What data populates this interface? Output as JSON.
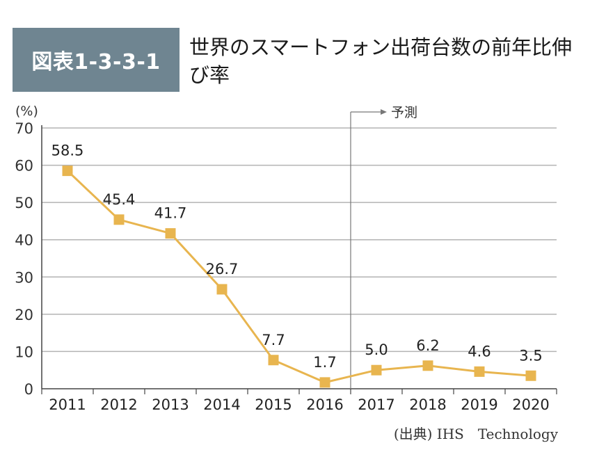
{
  "figure": {
    "badge": "図表1-3-3-1",
    "title": "世界のスマートフォン出荷台数の前年比伸び率",
    "source": "(出典) IHS　Technology"
  },
  "chart_data": {
    "type": "line",
    "categories": [
      "2011",
      "2012",
      "2013",
      "2014",
      "2015",
      "2016",
      "2017",
      "2018",
      "2019",
      "2020"
    ],
    "series": [
      {
        "values": [
          58.5,
          45.4,
          41.7,
          26.7,
          7.7,
          1.7,
          5.0,
          6.2,
          4.6,
          3.5
        ],
        "labels": [
          "58.5",
          "45.4",
          "41.7",
          "26.7",
          "7.7",
          "1.7",
          "5.0",
          "6.2",
          "4.6",
          "3.5"
        ],
        "color": "#e8b54f"
      }
    ],
    "ylabel": "(%)",
    "ylim": [
      0,
      70
    ],
    "yticks": [
      0,
      10,
      20,
      30,
      40,
      50,
      60,
      70
    ],
    "grid": true,
    "forecast_marker": {
      "from_between": [
        "2016",
        "2017"
      ],
      "label": "予測"
    },
    "colors": {
      "line": "#e8b54f",
      "grid": "#b3b3b3",
      "badge": "#6f8591",
      "axis": "#444444"
    }
  }
}
